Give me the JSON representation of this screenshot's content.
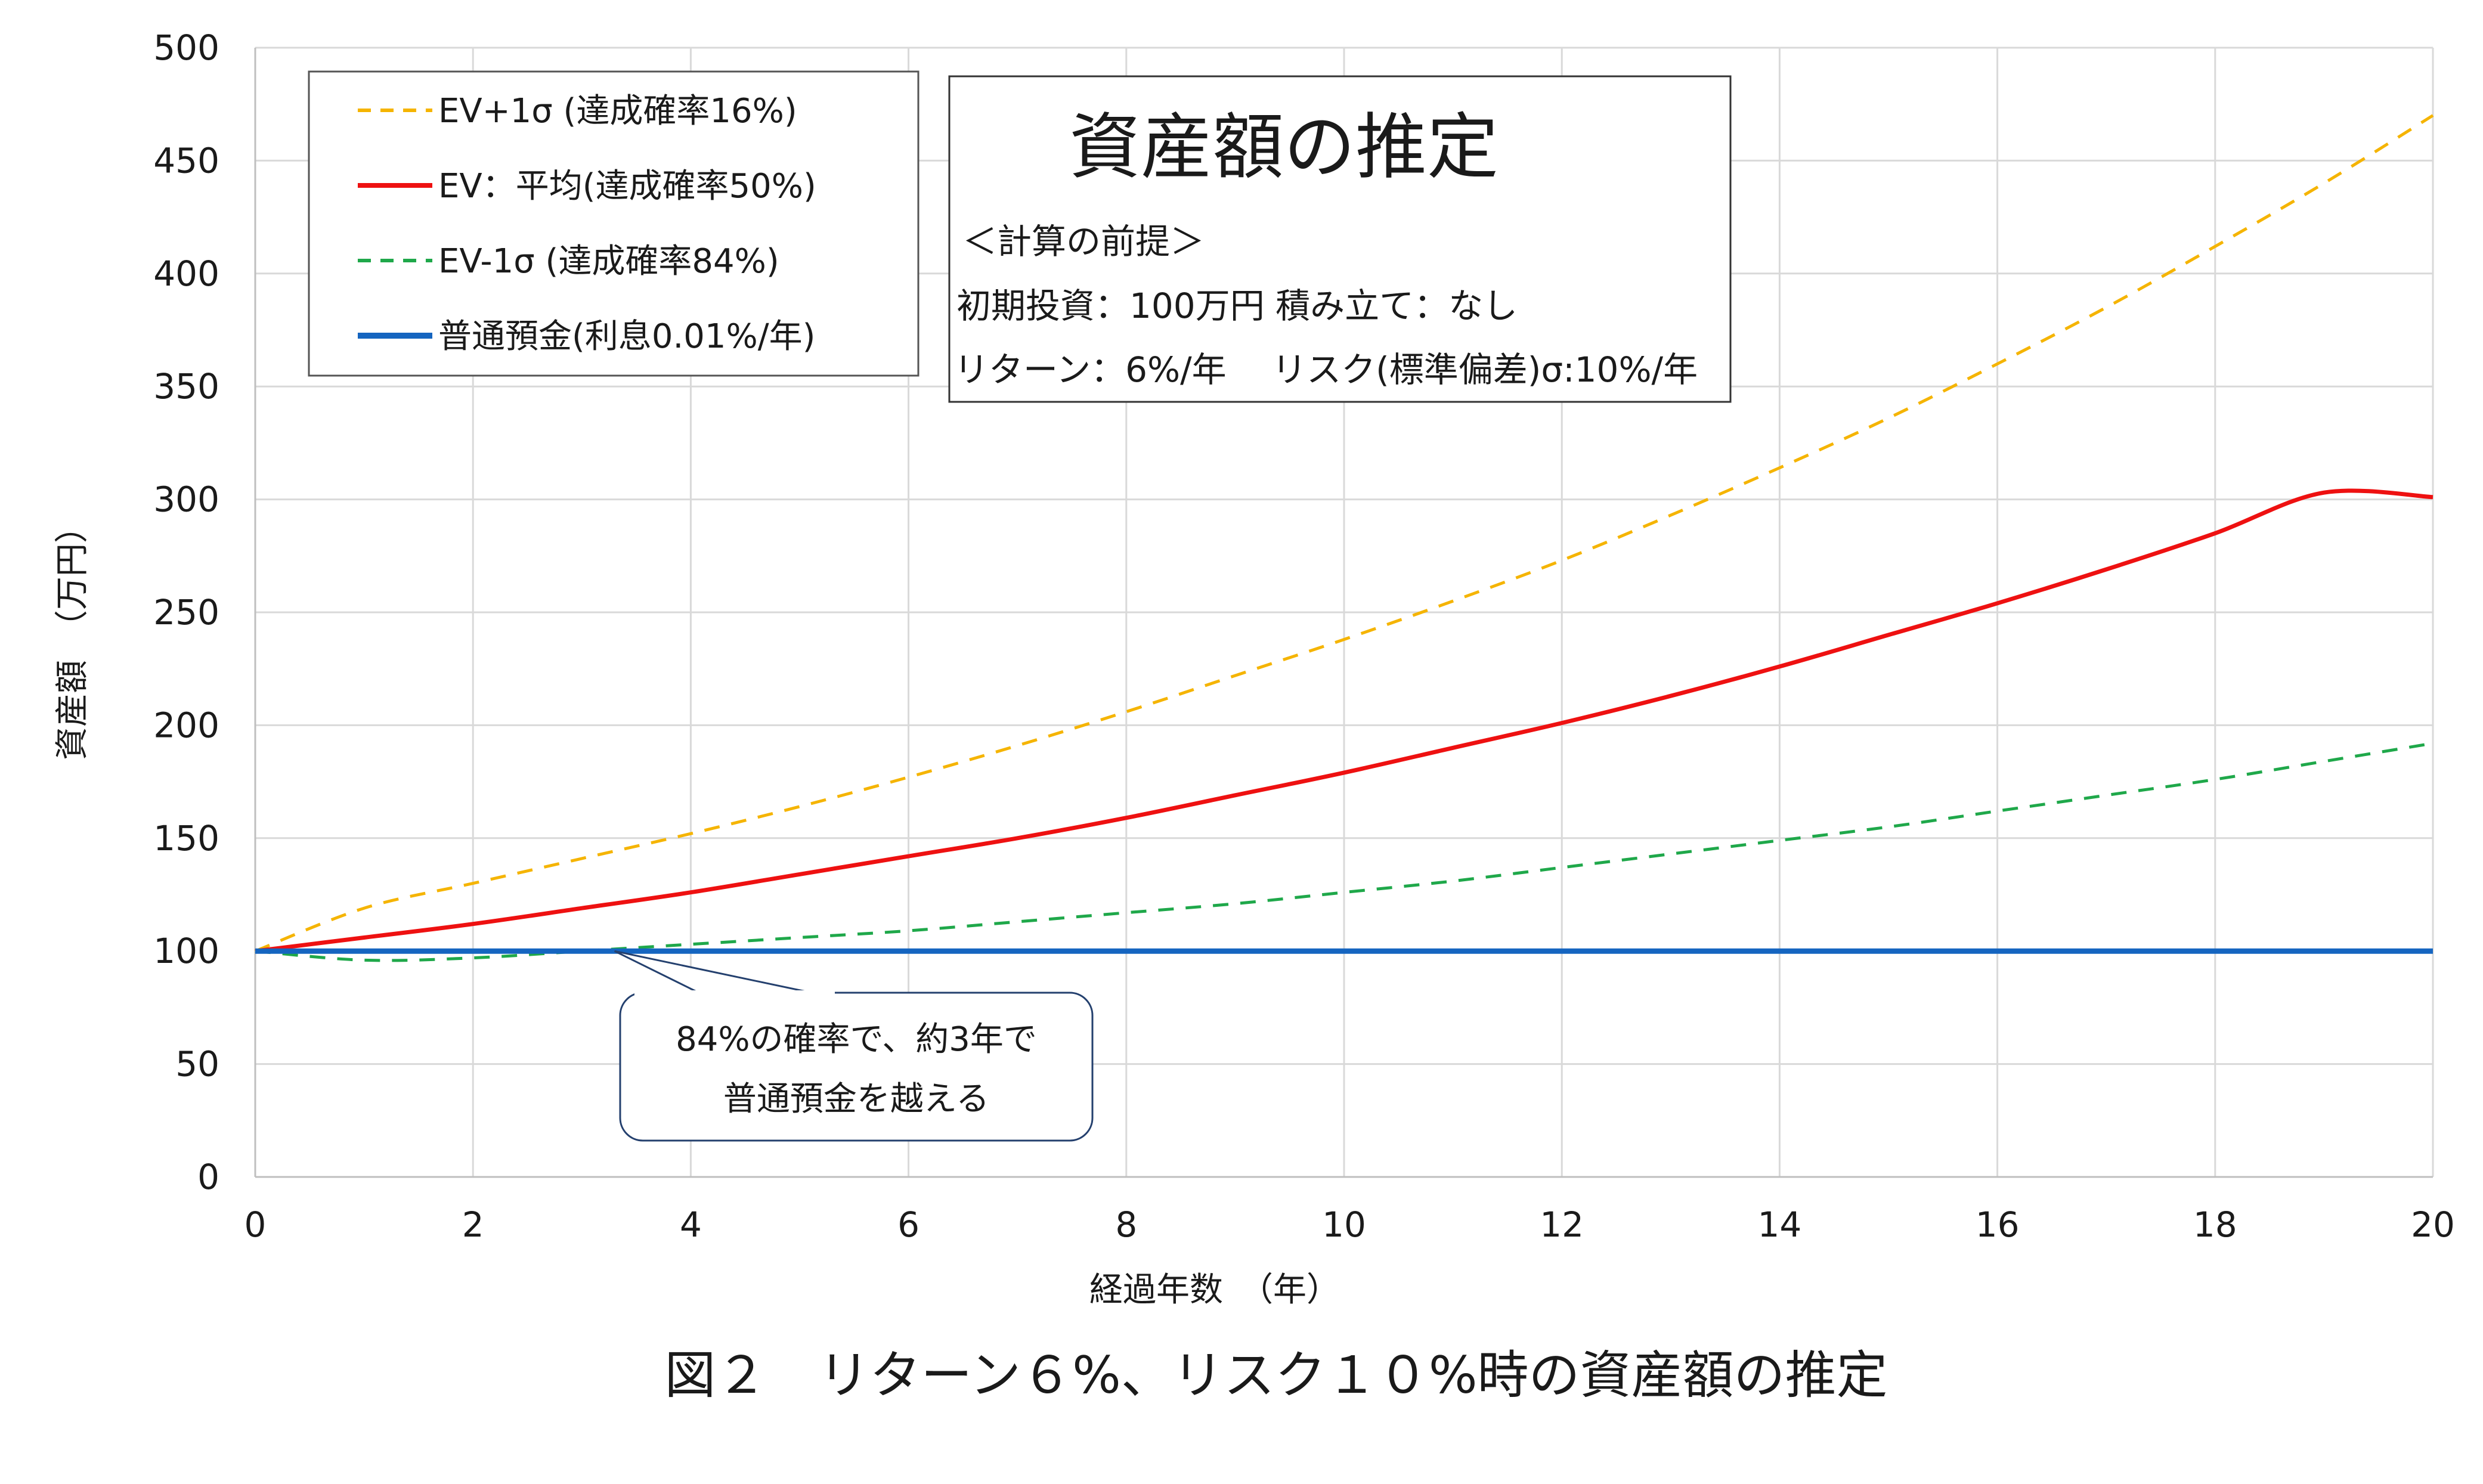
{
  "chart_data": {
    "type": "line",
    "title": "資産額の推定",
    "xlabel": "経過年数　（年）",
    "ylabel": "資産額　（万円）",
    "xlim": [
      0,
      20
    ],
    "ylim": [
      0,
      500
    ],
    "x_ticks": [
      "0",
      "2",
      "4",
      "6",
      "8",
      "10",
      "12",
      "14",
      "16",
      "18",
      "20"
    ],
    "y_ticks": [
      "0",
      "50",
      "100",
      "150",
      "200",
      "250",
      "300",
      "350",
      "400",
      "450",
      "500"
    ],
    "grid": true,
    "legend_position": "top-left",
    "x": [
      0,
      1,
      2,
      3,
      4,
      5,
      6,
      7,
      8,
      9,
      10,
      11,
      12,
      13,
      14,
      15,
      16,
      17,
      18,
      19,
      20
    ],
    "series": [
      {
        "name": "EV+1σ (達成確率16%)",
        "color": "#F5B400",
        "style": "dashed",
        "values": [
          100,
          119,
          130,
          141,
          152,
          164,
          177,
          191,
          206,
          222,
          238,
          255,
          273,
          293,
          314,
          336,
          360,
          385,
          412,
          440,
          470
        ]
      },
      {
        "name": "EV：平均(達成確率50%)",
        "color": "#EE1111",
        "style": "solid",
        "values": [
          100,
          106,
          112,
          119,
          126,
          134,
          142,
          150,
          159,
          169,
          179,
          190,
          201,
          213,
          226,
          240,
          254,
          269,
          285,
          303,
          301
        ]
      },
      {
        "name": "EV-1σ (達成確率84%)",
        "color": "#1FA84A",
        "style": "dashed",
        "values": [
          100,
          96,
          97,
          100,
          103,
          106,
          109,
          113,
          117,
          121,
          126,
          131,
          137,
          143,
          149,
          155,
          162,
          169,
          176,
          184,
          192
        ]
      },
      {
        "name": "普通預金(利息0.01%/年)",
        "color": "#1565C0",
        "style": "solid",
        "values": [
          100,
          100,
          100,
          100,
          100,
          100,
          100,
          100,
          100,
          100,
          100,
          100,
          100,
          100,
          100,
          100,
          100,
          100,
          100,
          100,
          100
        ]
      }
    ]
  },
  "info_box": {
    "title": "資産額の推定",
    "heading": "＜計算の前提＞",
    "line1": "初期投資：100万円  積み立て：なし",
    "line2": "リターン：6%/年　 リスク(標準偏差)σ:10%/年"
  },
  "callout": {
    "line1": "84%の確率で、約3年で",
    "line2": "普通預金を越える",
    "anchor": {
      "x": 3.3,
      "y": 100
    }
  },
  "caption": "図２　リターン６%、リスク１０%時の資産額の推定"
}
